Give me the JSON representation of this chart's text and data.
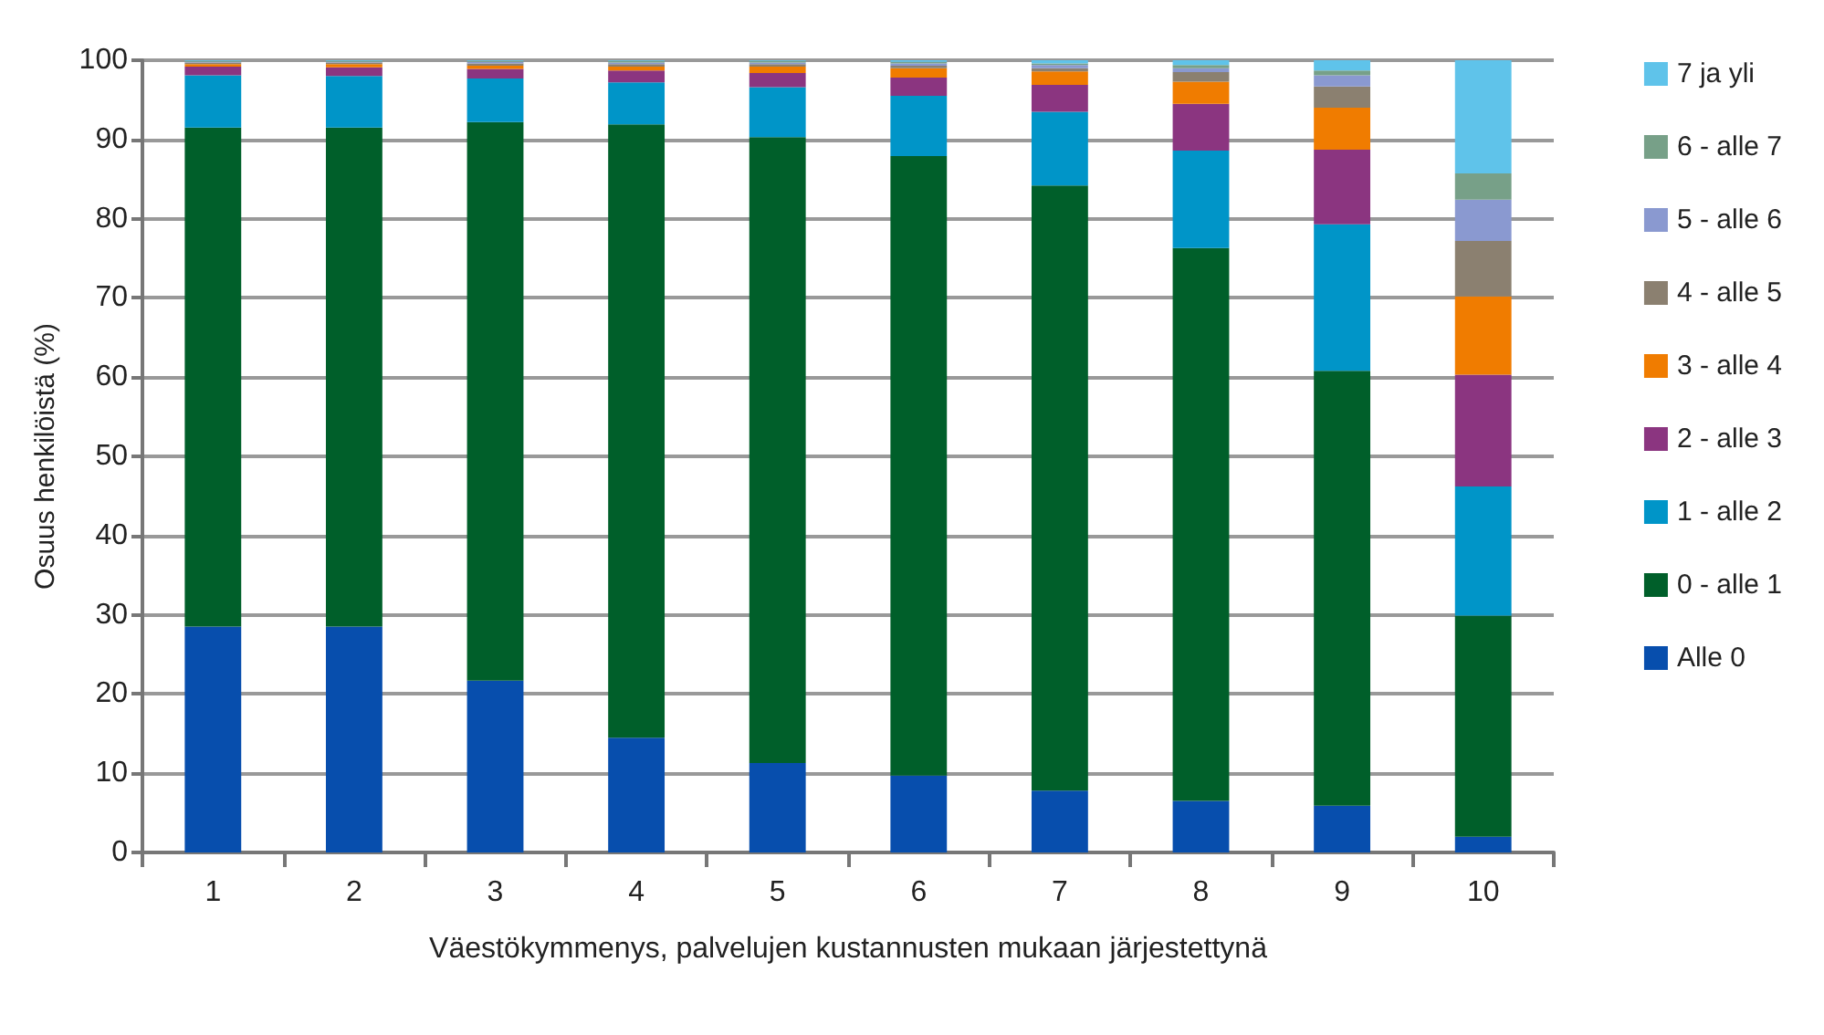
{
  "chart_data": {
    "type": "bar",
    "stacked": true,
    "xlabel": "Väestökymmenys, palvelujen kustannusten mukaan järjestettynä",
    "ylabel": "Osuus henkilöistä (%)",
    "categories": [
      "1",
      "2",
      "3",
      "4",
      "5",
      "6",
      "7",
      "8",
      "9",
      "10"
    ],
    "ylim": [
      0,
      100
    ],
    "yticks": [
      0,
      10,
      20,
      30,
      40,
      50,
      60,
      70,
      80,
      90,
      100
    ],
    "grid": "y",
    "legend": "right",
    "series": [
      {
        "name": "Alle 0",
        "color": "#074ead",
        "values": [
          28.5,
          28.5,
          21.7,
          14.5,
          11.3,
          9.7,
          7.8,
          6.5,
          5.9,
          2.0
        ]
      },
      {
        "name": "0 - alle 1",
        "color": "#005f2a",
        "values": [
          63.0,
          63.0,
          70.5,
          77.4,
          79.0,
          78.2,
          76.4,
          69.8,
          54.9,
          27.9
        ]
      },
      {
        "name": "1 - alle 2",
        "color": "#0095c8",
        "values": [
          6.6,
          6.5,
          5.5,
          5.3,
          6.3,
          7.6,
          9.3,
          12.3,
          18.5,
          16.3
        ]
      },
      {
        "name": "2 - alle 3",
        "color": "#8b3580",
        "values": [
          1.1,
          1.1,
          1.2,
          1.5,
          1.8,
          2.3,
          3.4,
          5.9,
          9.4,
          14.1
        ]
      },
      {
        "name": "3 - alle 4",
        "color": "#f07c00",
        "values": [
          0.3,
          0.4,
          0.4,
          0.5,
          0.8,
          1.2,
          1.7,
          2.8,
          5.3,
          9.9
        ]
      },
      {
        "name": "4 - alle 5",
        "color": "#8b8070",
        "values": [
          0.2,
          0.2,
          0.3,
          0.3,
          0.3,
          0.3,
          0.4,
          1.2,
          2.7,
          7.0
        ]
      },
      {
        "name": "5 - alle 6",
        "color": "#8a99d0",
        "values": [
          0.1,
          0.1,
          0.2,
          0.2,
          0.2,
          0.3,
          0.4,
          0.5,
          1.4,
          5.2
        ]
      },
      {
        "name": "6 - alle 7",
        "color": "#77a088",
        "values": [
          0.1,
          0.1,
          0.1,
          0.2,
          0.2,
          0.2,
          0.2,
          0.4,
          0.6,
          3.3
        ]
      },
      {
        "name": "7 ja yli",
        "color": "#5fc3ea",
        "values": [
          0.1,
          0.1,
          0.1,
          0.1,
          0.1,
          0.2,
          0.4,
          0.6,
          1.3,
          14.3
        ]
      }
    ]
  }
}
